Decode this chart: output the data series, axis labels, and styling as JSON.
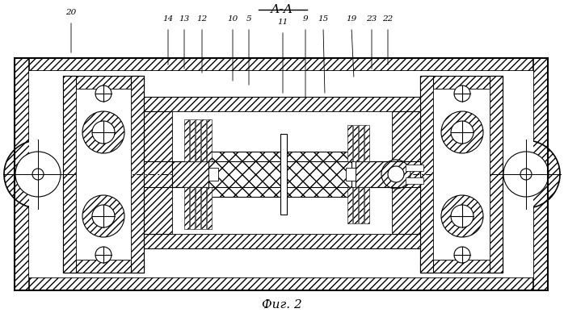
{
  "title": "А-А",
  "caption": "Фиг. 2",
  "bg_color": "#ffffff",
  "line_color": "#000000"
}
